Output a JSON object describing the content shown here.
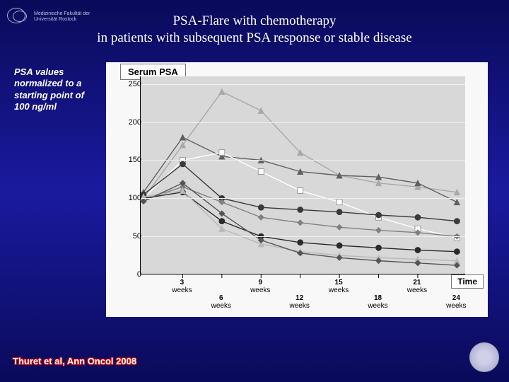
{
  "header": {
    "institution_line1": "Medizinische Fakultät der",
    "institution_line2": "Universität Rostock",
    "title_line1": "PSA-Flare with chemotherapy",
    "title_line2": "in patients with subsequent PSA response or stable disease"
  },
  "annotation": "PSA values normalized to a starting point of 100 ng/ml",
  "citation": "Thuret et al, Ann Oncol 2008",
  "chart": {
    "type": "line",
    "y_label_box": "Serum PSA",
    "x_label_box": "Time",
    "background_color": "#d8d8d8",
    "grid_color": "#f0f0f0",
    "axis_color": "#000000",
    "ylim": [
      0,
      260
    ],
    "yticks": [
      0,
      50,
      100,
      150,
      200,
      250
    ],
    "x_categories": [
      "0",
      "3\nweeks",
      "6\nweeks",
      "9\nweeks",
      "12\nweeks",
      "15\nweeks",
      "18\nweeks",
      "21\nweeks",
      "24\nweeks"
    ],
    "x_tick_rows": [
      {
        "pos": "upper",
        "items": [
          {
            "i": 1,
            "n": "3"
          },
          {
            "i": 3,
            "n": "9"
          },
          {
            "i": 5,
            "n": "15"
          },
          {
            "i": 7,
            "n": "21"
          }
        ]
      },
      {
        "pos": "lower",
        "items": [
          {
            "i": 2,
            "n": "6"
          },
          {
            "i": 4,
            "n": "12"
          },
          {
            "i": 6,
            "n": "18"
          },
          {
            "i": 8,
            "n": "24"
          }
        ]
      }
    ],
    "marker_size": 4,
    "line_width": 1.4,
    "series": [
      {
        "name": "s1",
        "color": "#a8a8a8",
        "marker": "triangle",
        "values": [
          100,
          170,
          240,
          215,
          160,
          130,
          120,
          115,
          108
        ]
      },
      {
        "name": "s2",
        "color": "#606060",
        "marker": "triangle",
        "values": [
          108,
          180,
          155,
          150,
          135,
          130,
          128,
          120,
          95
        ]
      },
      {
        "name": "s3",
        "color": "#ffffff",
        "marker": "square",
        "values": [
          100,
          150,
          160,
          135,
          110,
          95,
          75,
          60,
          48
        ]
      },
      {
        "name": "s4",
        "color": "#3a3a3a",
        "marker": "circle",
        "values": [
          105,
          145,
          100,
          88,
          85,
          82,
          78,
          75,
          70
        ]
      },
      {
        "name": "s5",
        "color": "#808080",
        "marker": "diamond",
        "values": [
          98,
          115,
          95,
          75,
          68,
          62,
          58,
          55,
          50
        ]
      },
      {
        "name": "s6",
        "color": "#2a2a2a",
        "marker": "circle",
        "values": [
          100,
          108,
          70,
          50,
          42,
          38,
          35,
          32,
          30
        ]
      },
      {
        "name": "s7",
        "color": "#b8b8b8",
        "marker": "triangle",
        "values": [
          102,
          110,
          60,
          40,
          30,
          25,
          22,
          20,
          18
        ]
      },
      {
        "name": "s8",
        "color": "#555555",
        "marker": "diamond",
        "values": [
          96,
          120,
          80,
          45,
          28,
          22,
          18,
          15,
          12
        ]
      }
    ]
  }
}
